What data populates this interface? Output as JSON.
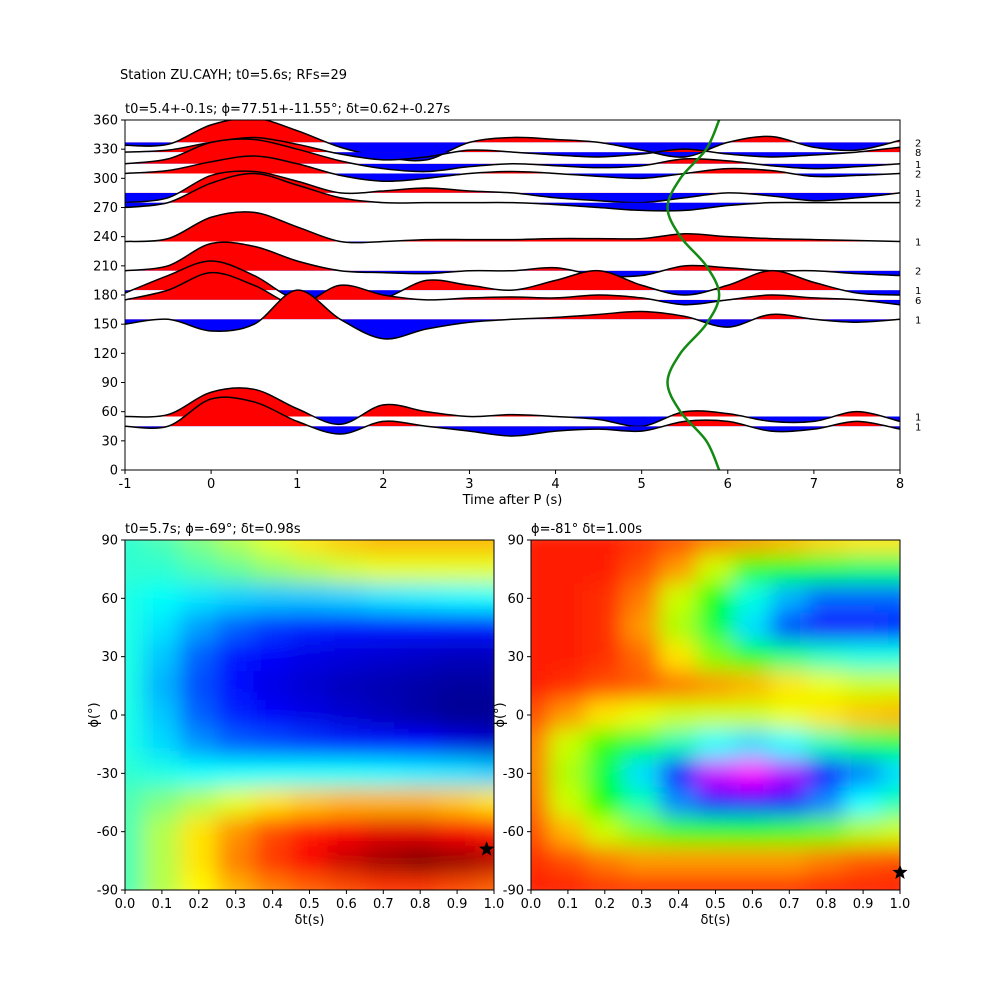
{
  "chart_data": [
    {
      "type": "line",
      "suptitle": "Station ZU.CAYH; t0=5.6s; RFs=29",
      "title": "t0=5.4+-0.1s; ϕ=77.51+-11.55°; δt=0.62+-0.27s",
      "xlabel": "Time after P (s)",
      "x": [
        -1,
        -0.5,
        0,
        0.5,
        1,
        1.5,
        2,
        2.5,
        3,
        3.5,
        4,
        4.5,
        5,
        5.5,
        6,
        6.5,
        7,
        7.5,
        8
      ],
      "series": [
        {
          "baseline": 337,
          "count": 2,
          "values": [
            -3,
            -2,
            18,
            25,
            12,
            -5,
            -15,
            -18,
            0,
            5,
            3,
            0,
            -8,
            -15,
            0,
            6,
            -5,
            -8,
            2
          ]
        },
        {
          "baseline": 327,
          "count": 8,
          "values": [
            0,
            2,
            10,
            15,
            8,
            -2,
            -8,
            -5,
            2,
            0,
            -3,
            -5,
            -2,
            3,
            -2,
            -5,
            -3,
            0,
            5
          ]
        },
        {
          "baseline": 315,
          "count": 1,
          "values": [
            0,
            5,
            22,
            25,
            15,
            3,
            -5,
            -8,
            -3,
            0,
            -2,
            -4,
            -2,
            5,
            3,
            -2,
            -5,
            -3,
            0
          ]
        },
        {
          "baseline": 305,
          "count": 2,
          "values": [
            0,
            3,
            12,
            18,
            10,
            -2,
            -8,
            -5,
            0,
            2,
            0,
            -3,
            -5,
            0,
            5,
            3,
            -3,
            -2,
            0
          ]
        },
        {
          "baseline": 285,
          "count": 1,
          "values": [
            -10,
            -5,
            18,
            22,
            12,
            0,
            2,
            5,
            2,
            0,
            -5,
            -8,
            -10,
            -5,
            0,
            -3,
            -8,
            -5,
            0
          ]
        },
        {
          "baseline": 275,
          "count": 2,
          "values": [
            -5,
            0,
            20,
            30,
            18,
            5,
            0,
            0,
            0,
            0,
            -2,
            -5,
            -8,
            -8,
            -3,
            0,
            0,
            0,
            0
          ]
        },
        {
          "baseline": 235,
          "count": 1,
          "values": [
            0,
            3,
            25,
            30,
            15,
            0,
            0,
            2,
            2,
            2,
            3,
            3,
            3,
            8,
            5,
            3,
            2,
            1,
            0
          ]
        },
        {
          "baseline": 205,
          "count": 2,
          "values": [
            0,
            5,
            28,
            25,
            10,
            0,
            -2,
            -3,
            0,
            0,
            3,
            -5,
            -5,
            5,
            3,
            0,
            0,
            -3,
            -5
          ]
        },
        {
          "baseline": 185,
          "count": 1,
          "values": [
            -3,
            15,
            30,
            15,
            -10,
            -5,
            -8,
            10,
            5,
            0,
            10,
            20,
            5,
            -5,
            5,
            20,
            8,
            -3,
            -5
          ]
        },
        {
          "baseline": 175,
          "count": 6,
          "values": [
            0,
            10,
            28,
            15,
            -5,
            15,
            5,
            0,
            2,
            3,
            2,
            5,
            2,
            -5,
            0,
            5,
            2,
            0,
            -5
          ]
        },
        {
          "baseline": 155,
          "count": 1,
          "values": [
            -5,
            0,
            -12,
            -5,
            30,
            0,
            -20,
            -10,
            -3,
            0,
            2,
            5,
            8,
            3,
            -8,
            5,
            0,
            -3,
            0
          ]
        },
        {
          "baseline": 55,
          "count": 1,
          "values": [
            0,
            2,
            25,
            28,
            8,
            -8,
            12,
            5,
            0,
            2,
            0,
            -3,
            -10,
            5,
            3,
            -5,
            -5,
            5,
            -5
          ]
        },
        {
          "baseline": 45,
          "count": 1,
          "values": [
            0,
            0,
            28,
            25,
            5,
            -8,
            5,
            0,
            -5,
            -10,
            -5,
            -3,
            -5,
            5,
            5,
            -5,
            -3,
            5,
            -3
          ]
        }
      ],
      "fill_colors": [
        "#ff0000",
        "#0000ff"
      ],
      "curve": {
        "color": "#138a13",
        "x": [
          5.9,
          5.75,
          5.45,
          5.3,
          5.45,
          5.75,
          5.9,
          5.75,
          5.45,
          5.3,
          5.45,
          5.75,
          5.9
        ],
        "y": [
          0,
          30,
          60,
          90,
          120,
          150,
          180,
          210,
          240,
          270,
          300,
          330,
          360
        ]
      },
      "xlim": [
        -1,
        8
      ],
      "ylim": [
        0,
        360
      ],
      "xticks": [
        -1,
        0,
        1,
        2,
        3,
        4,
        5,
        6,
        7,
        8
      ],
      "yticks": [
        0,
        30,
        60,
        90,
        120,
        150,
        180,
        210,
        240,
        270,
        300,
        330,
        360
      ]
    },
    {
      "type": "heatmap",
      "colormap": "jet",
      "title": "t0=5.7s; ϕ=-69°; δt=0.98s",
      "xlabel": "δt(s)",
      "ylabel": "ϕ(°)",
      "x": [
        0,
        0.1,
        0.2,
        0.3,
        0.4,
        0.5,
        0.6,
        0.7,
        0.8,
        0.9,
        1
      ],
      "y": [
        90,
        75,
        60,
        45,
        30,
        15,
        0,
        -15,
        -30,
        -45,
        -60,
        -75,
        -90
      ],
      "z": [
        [
          0.42,
          0.45,
          0.5,
          0.55,
          0.6,
          0.65,
          0.68,
          0.7,
          0.7,
          0.7,
          0.7
        ],
        [
          0.42,
          0.42,
          0.45,
          0.48,
          0.52,
          0.55,
          0.58,
          0.6,
          0.6,
          0.6,
          0.6
        ],
        [
          0.4,
          0.38,
          0.35,
          0.33,
          0.32,
          0.32,
          0.33,
          0.35,
          0.36,
          0.37,
          0.38
        ],
        [
          0.4,
          0.35,
          0.28,
          0.22,
          0.18,
          0.16,
          0.15,
          0.15,
          0.15,
          0.15,
          0.15
        ],
        [
          0.4,
          0.32,
          0.22,
          0.15,
          0.12,
          0.1,
          0.09,
          0.08,
          0.07,
          0.06,
          0.06
        ],
        [
          0.4,
          0.3,
          0.2,
          0.14,
          0.1,
          0.08,
          0.06,
          0.05,
          0.04,
          0.03,
          0.03
        ],
        [
          0.4,
          0.32,
          0.22,
          0.16,
          0.12,
          0.1,
          0.08,
          0.06,
          0.04,
          0.02,
          0.02
        ],
        [
          0.4,
          0.34,
          0.27,
          0.22,
          0.2,
          0.18,
          0.16,
          0.15,
          0.13,
          0.1,
          0.08
        ],
        [
          0.42,
          0.4,
          0.38,
          0.38,
          0.38,
          0.38,
          0.38,
          0.37,
          0.36,
          0.35,
          0.33
        ],
        [
          0.45,
          0.5,
          0.55,
          0.6,
          0.65,
          0.68,
          0.7,
          0.7,
          0.7,
          0.68,
          0.65
        ],
        [
          0.45,
          0.55,
          0.65,
          0.73,
          0.8,
          0.85,
          0.88,
          0.9,
          0.9,
          0.88,
          0.85
        ],
        [
          0.45,
          0.55,
          0.65,
          0.75,
          0.82,
          0.88,
          0.93,
          0.97,
          1.0,
          0.98,
          0.95
        ],
        [
          0.45,
          0.55,
          0.63,
          0.7,
          0.75,
          0.78,
          0.8,
          0.82,
          0.82,
          0.8,
          0.78
        ]
      ],
      "star": {
        "x": 0.98,
        "y": -69
      },
      "xlim": [
        0,
        1
      ],
      "ylim": [
        -90,
        90
      ],
      "xticks": [
        {
          "value": 0,
          "label": "0.0"
        },
        0.1,
        0.2,
        0.3,
        0.4,
        0.5,
        0.6,
        0.7,
        0.8,
        0.9,
        {
          "value": 1,
          "label": "1.0"
        }
      ],
      "yticks": [
        -90,
        -60,
        -30,
        0,
        30,
        60,
        90
      ]
    },
    {
      "type": "heatmap",
      "colormap": "hsv",
      "title": "ϕ=-81° δt=1.00s",
      "xlabel": "δt(s)",
      "ylabel": "ϕ(°)",
      "x": [
        0,
        0.1,
        0.2,
        0.3,
        0.4,
        0.5,
        0.6,
        0.7,
        0.8,
        0.9,
        1
      ],
      "y": [
        90,
        75,
        60,
        45,
        30,
        15,
        0,
        -15,
        -30,
        -45,
        -60,
        -75,
        -90
      ],
      "z": [
        [
          0.02,
          0.02,
          0.02,
          0.03,
          0.05,
          0.08,
          0.1,
          0.12,
          0.14,
          0.15,
          0.15
        ],
        [
          0.02,
          0.02,
          0.02,
          0.05,
          0.1,
          0.2,
          0.3,
          0.35,
          0.38,
          0.4,
          0.4
        ],
        [
          0.02,
          0.02,
          0.03,
          0.08,
          0.2,
          0.35,
          0.48,
          0.55,
          0.6,
          0.6,
          0.6
        ],
        [
          0.02,
          0.02,
          0.03,
          0.1,
          0.22,
          0.38,
          0.52,
          0.62,
          0.68,
          0.68,
          0.66
        ],
        [
          0.02,
          0.02,
          0.03,
          0.07,
          0.15,
          0.25,
          0.35,
          0.42,
          0.46,
          0.48,
          0.48
        ],
        [
          0.02,
          0.03,
          0.05,
          0.06,
          0.08,
          0.1,
          0.12,
          0.15,
          0.18,
          0.2,
          0.2
        ],
        [
          0.05,
          0.1,
          0.15,
          0.18,
          0.2,
          0.2,
          0.2,
          0.18,
          0.15,
          0.13,
          0.12
        ],
        [
          0.08,
          0.2,
          0.3,
          0.38,
          0.45,
          0.5,
          0.52,
          0.5,
          0.45,
          0.4,
          0.38
        ],
        [
          0.08,
          0.22,
          0.38,
          0.52,
          0.68,
          0.8,
          0.83,
          0.78,
          0.68,
          0.58,
          0.52
        ],
        [
          0.07,
          0.2,
          0.33,
          0.45,
          0.58,
          0.65,
          0.68,
          0.65,
          0.58,
          0.5,
          0.45
        ],
        [
          0.05,
          0.12,
          0.2,
          0.25,
          0.3,
          0.32,
          0.33,
          0.3,
          0.27,
          0.22,
          0.2
        ],
        [
          0.03,
          0.05,
          0.08,
          0.1,
          0.1,
          0.1,
          0.1,
          0.1,
          0.08,
          0.06,
          0.05
        ],
        [
          0.02,
          0.02,
          0.03,
          0.03,
          0.03,
          0.03,
          0.03,
          0.03,
          0.02,
          0.02,
          0.02
        ]
      ],
      "star": {
        "x": 1,
        "y": -81
      },
      "xlim": [
        0,
        1
      ],
      "ylim": [
        -90,
        90
      ],
      "xticks": [
        {
          "value": 0,
          "label": "0.0"
        },
        0.1,
        0.2,
        0.3,
        0.4,
        0.5,
        0.6,
        0.7,
        0.8,
        0.9,
        {
          "value": 1,
          "label": "1.0"
        }
      ],
      "yticks": [
        -90,
        -60,
        -30,
        0,
        30,
        60,
        90
      ]
    }
  ]
}
